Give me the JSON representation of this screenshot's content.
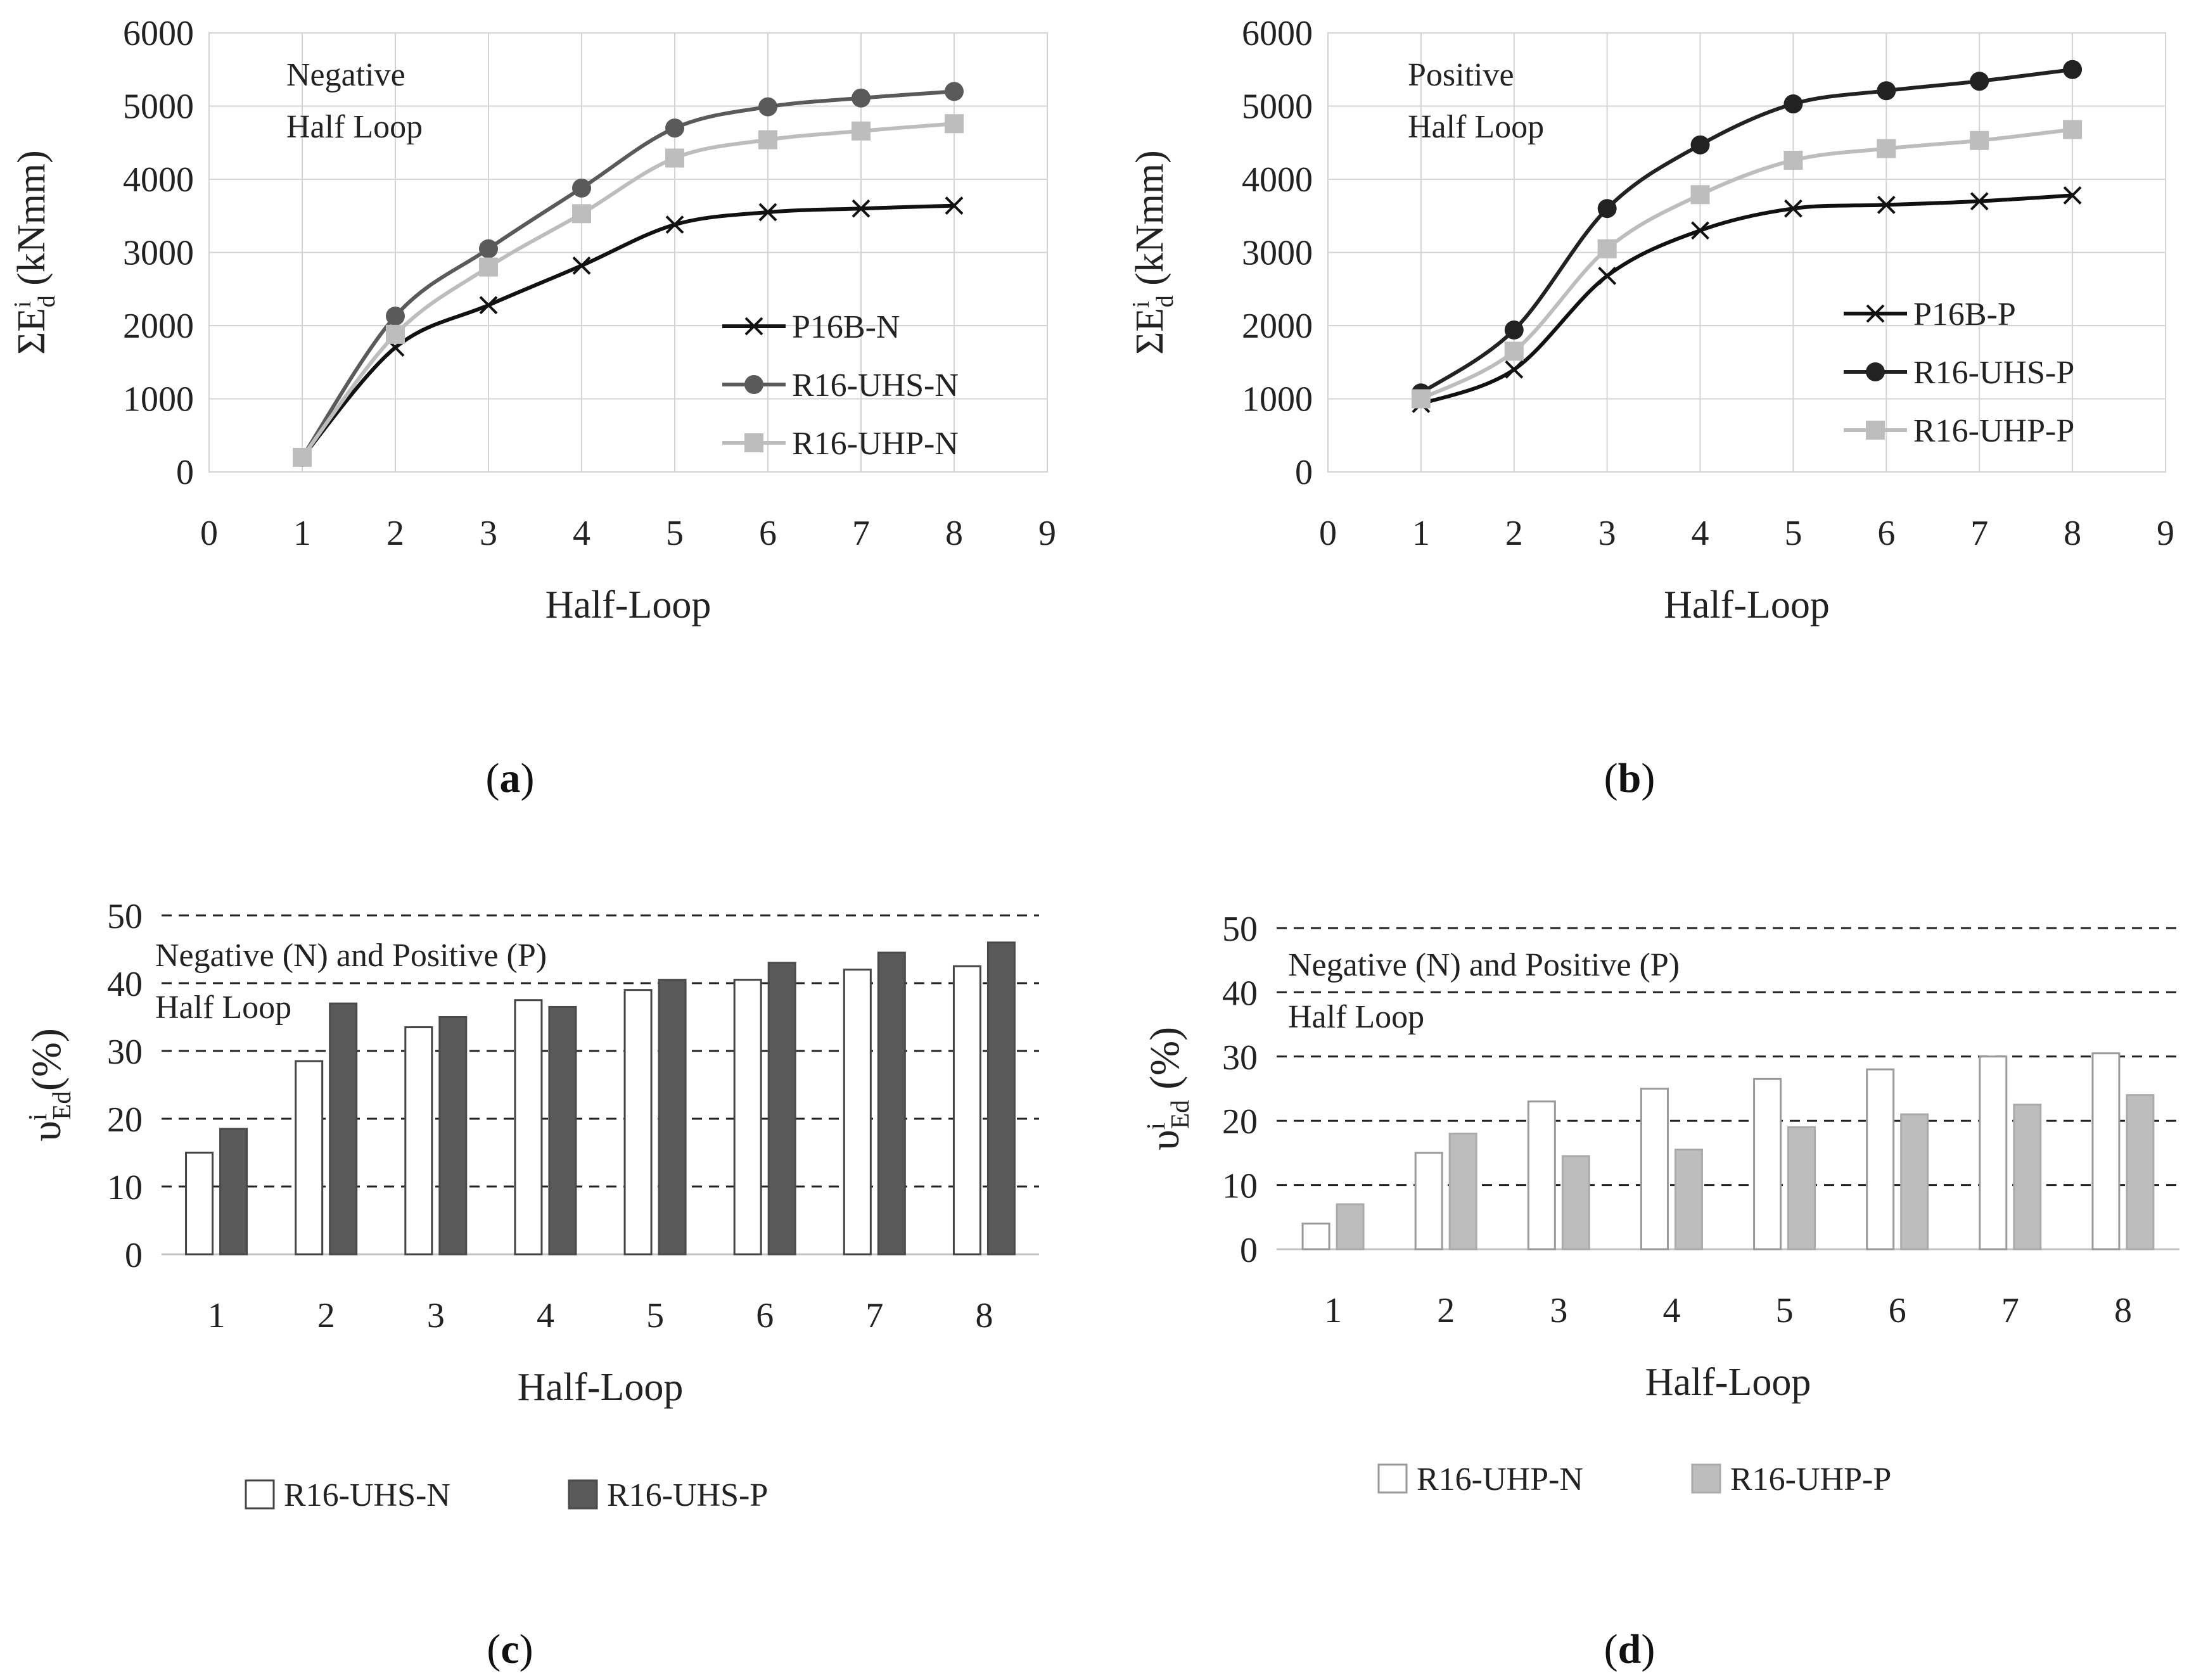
{
  "chart_data": [
    {
      "id": "a",
      "type": "line",
      "caption_letter": "a",
      "annotation": [
        "Negative",
        "Half Loop"
      ],
      "xlabel": "Half-Loop",
      "ylabel_main": "ΣE",
      "ylabel_sup": "i",
      "ylabel_sub": "d",
      "ylabel_unit": " (kNmm)",
      "xlim": [
        0,
        9
      ],
      "ylim": [
        0,
        6000
      ],
      "xticks": [
        "0",
        "1",
        "2",
        "3",
        "4",
        "5",
        "6",
        "7",
        "8",
        "9"
      ],
      "yticks": [
        "0",
        "1000",
        "2000",
        "3000",
        "4000",
        "5000",
        "6000"
      ],
      "grid": true,
      "x": [
        1,
        2,
        3,
        4,
        5,
        6,
        7,
        8
      ],
      "series": [
        {
          "name": "P16B-N",
          "color": "#111111",
          "marker": "x",
          "values": [
            200,
            1700,
            2280,
            2820,
            3380,
            3550,
            3600,
            3640
          ]
        },
        {
          "name": "R16-UHS-N",
          "color": "#5a5a5a",
          "marker": "circle",
          "values": [
            200,
            2130,
            3050,
            3880,
            4700,
            4990,
            5110,
            5200
          ]
        },
        {
          "name": "R16-UHP-N",
          "color": "#bdbdbd",
          "marker": "square",
          "values": [
            200,
            1880,
            2800,
            3530,
            4290,
            4540,
            4660,
            4760
          ]
        }
      ]
    },
    {
      "id": "b",
      "type": "line",
      "caption_letter": "b",
      "annotation": [
        "Positive",
        "Half Loop"
      ],
      "xlabel": "Half-Loop",
      "ylabel_main": "ΣE",
      "ylabel_sup": "i",
      "ylabel_sub": "d",
      "ylabel_unit": " (kNmm)",
      "xlim": [
        0,
        9
      ],
      "ylim": [
        0,
        6000
      ],
      "xticks": [
        "0",
        "1",
        "2",
        "3",
        "4",
        "5",
        "6",
        "7",
        "8",
        "9"
      ],
      "yticks": [
        "0",
        "1000",
        "2000",
        "3000",
        "4000",
        "5000",
        "6000"
      ],
      "grid": true,
      "x": [
        1,
        2,
        3,
        4,
        5,
        6,
        7,
        8
      ],
      "series": [
        {
          "name": "P16B-P",
          "color": "#111111",
          "marker": "x",
          "values": [
            930,
            1400,
            2680,
            3300,
            3600,
            3650,
            3700,
            3780
          ]
        },
        {
          "name": "R16-UHS-P",
          "color": "#222222",
          "marker": "circle",
          "values": [
            1080,
            1940,
            3600,
            4470,
            5030,
            5210,
            5340,
            5500
          ]
        },
        {
          "name": "R16-UHP-P",
          "color": "#bdbdbd",
          "marker": "square",
          "values": [
            1000,
            1650,
            3050,
            3790,
            4260,
            4420,
            4530,
            4680
          ]
        }
      ]
    },
    {
      "id": "c",
      "type": "bar",
      "caption_letter": "c",
      "annotation": [
        "Negative (N) and Positive (P)",
        "Half Loop"
      ],
      "xlabel": "Half-Loop",
      "ylabel_main": "υ",
      "ylabel_sup": "i",
      "ylabel_sub": "Ed",
      "ylabel_unit": "(%)",
      "ylim": [
        0,
        50
      ],
      "yticks": [
        "0",
        "10",
        "20",
        "30",
        "40",
        "50"
      ],
      "grid": true,
      "categories": [
        "1",
        "2",
        "3",
        "4",
        "5",
        "6",
        "7",
        "8"
      ],
      "series": [
        {
          "name": "R16-UHS-N",
          "fill": "#ffffff",
          "stroke": "#444444",
          "values": [
            15,
            28.5,
            33.5,
            37.5,
            39,
            40.5,
            42,
            42.5
          ]
        },
        {
          "name": "R16-UHS-P",
          "fill": "#5a5a5a",
          "stroke": "#4a4a4a",
          "values": [
            18.5,
            37,
            35,
            36.5,
            40.5,
            43,
            44.5,
            46
          ]
        }
      ]
    },
    {
      "id": "d",
      "type": "bar",
      "caption_letter": "d",
      "annotation": [
        "Negative (N) and Positive (P)",
        "Half Loop"
      ],
      "xlabel": "Half-Loop",
      "ylabel_main": "υ",
      "ylabel_sup": "i",
      "ylabel_sub": "Ed",
      "ylabel_unit": " (%)",
      "ylim": [
        0,
        50
      ],
      "yticks": [
        "0",
        "10",
        "20",
        "30",
        "40",
        "50"
      ],
      "grid": true,
      "categories": [
        "1",
        "2",
        "3",
        "4",
        "5",
        "6",
        "7",
        "8"
      ],
      "series": [
        {
          "name": "R16-UHP-N",
          "fill": "#ffffff",
          "stroke": "#9a9a9a",
          "values": [
            4,
            15,
            23,
            25,
            26.5,
            28,
            30,
            30.5
          ]
        },
        {
          "name": "R16-UHP-P",
          "fill": "#bdbdbd",
          "stroke": "#aaaaaa",
          "values": [
            7,
            18,
            14.5,
            15.5,
            19,
            21,
            22.5,
            24
          ]
        }
      ]
    }
  ]
}
